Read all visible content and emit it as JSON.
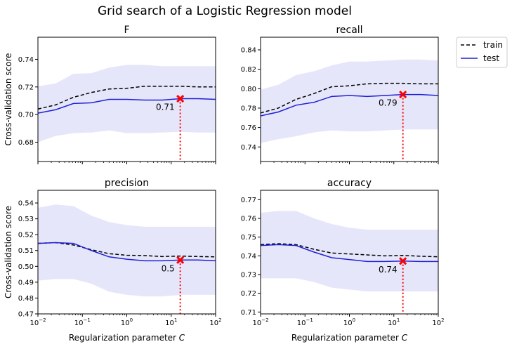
{
  "figure": {
    "title": "Grid search of a Logistic Regression model"
  },
  "legend": {
    "entries": [
      {
        "name": "train",
        "style": "dashed",
        "color": "#000000"
      },
      {
        "name": "test",
        "style": "solid",
        "color": "#0000ff"
      }
    ],
    "placement": "right-outside-top"
  },
  "colors": {
    "band": "#e6e6fb",
    "marker": "#ff0000",
    "test": "#1f1fd6",
    "train": "#000000"
  },
  "chart_data": [
    {
      "type": "line",
      "title": "F",
      "xlabel": "",
      "ylabel": "Cross-validation score",
      "xscale": "log",
      "xlim": [
        0.01,
        100
      ],
      "ylim": [
        0.666,
        0.756
      ],
      "yticks": [
        0.68,
        0.7,
        0.72,
        0.74
      ],
      "ytick_labels": [
        "0.68",
        "0.70",
        "0.72",
        "0.74"
      ],
      "show_xtick_labels": false,
      "x": [
        0.01,
        0.025,
        0.063,
        0.16,
        0.4,
        1,
        2.5,
        6.3,
        16,
        40,
        100
      ],
      "series": [
        {
          "name": "train",
          "values": [
            0.704,
            0.707,
            0.7125,
            0.716,
            0.7185,
            0.719,
            0.7205,
            0.7205,
            0.7205,
            0.72,
            0.72
          ]
        },
        {
          "name": "test",
          "values": [
            0.701,
            0.7035,
            0.708,
            0.7085,
            0.711,
            0.711,
            0.7105,
            0.7105,
            0.7115,
            0.7115,
            0.711
          ]
        }
      ],
      "band": {
        "lower": [
          0.68,
          0.6845,
          0.6865,
          0.687,
          0.6885,
          0.6865,
          0.6865,
          0.687,
          0.6875,
          0.687,
          0.687
        ],
        "upper": [
          0.7205,
          0.7225,
          0.7295,
          0.73,
          0.734,
          0.736,
          0.736,
          0.735,
          0.735,
          0.735,
          0.735
        ]
      },
      "best": {
        "x": 16,
        "y": 0.7115,
        "label": "0.71"
      }
    },
    {
      "type": "line",
      "title": "recall",
      "xlabel": "",
      "ylabel": "",
      "xscale": "log",
      "xlim": [
        0.01,
        100
      ],
      "ylim": [
        0.725,
        0.853
      ],
      "yticks": [
        0.74,
        0.76,
        0.78,
        0.8,
        0.82,
        0.84
      ],
      "ytick_labels": [
        "0.74",
        "0.76",
        "0.78",
        "0.80",
        "0.82",
        "0.84"
      ],
      "show_xtick_labels": false,
      "x": [
        0.01,
        0.025,
        0.063,
        0.16,
        0.4,
        1,
        2.5,
        6.3,
        16,
        40,
        100
      ],
      "series": [
        {
          "name": "train",
          "values": [
            0.775,
            0.78,
            0.789,
            0.795,
            0.802,
            0.803,
            0.805,
            0.8055,
            0.8055,
            0.805,
            0.805
          ]
        },
        {
          "name": "test",
          "values": [
            0.772,
            0.776,
            0.783,
            0.786,
            0.792,
            0.793,
            0.792,
            0.793,
            0.794,
            0.794,
            0.793
          ]
        }
      ],
      "band": {
        "lower": [
          0.744,
          0.748,
          0.751,
          0.755,
          0.757,
          0.756,
          0.756,
          0.757,
          0.758,
          0.758,
          0.758
        ],
        "upper": [
          0.799,
          0.804,
          0.814,
          0.818,
          0.824,
          0.828,
          0.828,
          0.829,
          0.83,
          0.83,
          0.829
        ]
      },
      "best": {
        "x": 16,
        "y": 0.794,
        "label": "0.79"
      }
    },
    {
      "type": "line",
      "title": "precision",
      "xlabel": "Regularization parameter C",
      "ylabel": "Cross-validation score",
      "xscale": "log",
      "xlim": [
        0.01,
        100
      ],
      "ylim": [
        0.47,
        0.548
      ],
      "yticks": [
        0.47,
        0.48,
        0.49,
        0.5,
        0.51,
        0.52,
        0.53,
        0.54
      ],
      "ytick_labels": [
        "0.47",
        "0.48",
        "0.49",
        "0.50",
        "0.51",
        "0.52",
        "0.53",
        "0.54"
      ],
      "show_xtick_labels": true,
      "xticks": [
        0.01,
        0.1,
        1,
        10,
        100
      ],
      "xtick_labels": [
        {
          "base": "10",
          "exp": "−2"
        },
        {
          "base": "10",
          "exp": "−1"
        },
        {
          "base": "10",
          "exp": "0"
        },
        {
          "base": "10",
          "exp": "1"
        },
        {
          "base": "10",
          "exp": "2"
        }
      ],
      "x": [
        0.01,
        0.025,
        0.063,
        0.16,
        0.4,
        1,
        2.5,
        6.3,
        16,
        40,
        100
      ],
      "series": [
        {
          "name": "train",
          "values": [
            0.5145,
            0.515,
            0.5135,
            0.5105,
            0.508,
            0.507,
            0.5068,
            0.5062,
            0.5065,
            0.5062,
            0.506
          ]
        },
        {
          "name": "test",
          "values": [
            0.5145,
            0.515,
            0.5145,
            0.51,
            0.506,
            0.5045,
            0.5035,
            0.5035,
            0.504,
            0.504,
            0.5035
          ]
        }
      ],
      "band": {
        "lower": [
          0.491,
          0.492,
          0.492,
          0.489,
          0.484,
          0.482,
          0.481,
          0.481,
          0.482,
          0.482,
          0.482
        ],
        "upper": [
          0.537,
          0.539,
          0.538,
          0.532,
          0.528,
          0.526,
          0.525,
          0.525,
          0.525,
          0.525,
          0.525
        ]
      },
      "best": {
        "x": 16,
        "y": 0.504,
        "label": "0.5"
      }
    },
    {
      "type": "line",
      "title": "accuracy",
      "xlabel": "Regularization parameter C",
      "ylabel": "",
      "xscale": "log",
      "xlim": [
        0.01,
        100
      ],
      "ylim": [
        0.709,
        0.775
      ],
      "yticks": [
        0.71,
        0.72,
        0.73,
        0.74,
        0.75,
        0.76,
        0.77
      ],
      "ytick_labels": [
        "0.71",
        "0.72",
        "0.73",
        "0.74",
        "0.75",
        "0.76",
        "0.77"
      ],
      "show_xtick_labels": true,
      "xticks": [
        0.01,
        0.1,
        1,
        10,
        100
      ],
      "xtick_labels": [
        {
          "base": "10",
          "exp": "−2"
        },
        {
          "base": "10",
          "exp": "−1"
        },
        {
          "base": "10",
          "exp": "0"
        },
        {
          "base": "10",
          "exp": "1"
        },
        {
          "base": "10",
          "exp": "2"
        }
      ],
      "x": [
        0.01,
        0.025,
        0.063,
        0.16,
        0.4,
        1,
        2.5,
        6.3,
        16,
        40,
        100
      ],
      "series": [
        {
          "name": "train",
          "values": [
            0.746,
            0.7465,
            0.746,
            0.7435,
            0.7415,
            0.741,
            0.7405,
            0.74,
            0.7402,
            0.7398,
            0.7395
          ]
        },
        {
          "name": "test",
          "values": [
            0.7455,
            0.746,
            0.7455,
            0.742,
            0.739,
            0.738,
            0.737,
            0.737,
            0.7372,
            0.737,
            0.737
          ]
        }
      ],
      "band": {
        "lower": [
          0.728,
          0.728,
          0.728,
          0.726,
          0.723,
          0.722,
          0.721,
          0.721,
          0.721,
          0.721,
          0.721
        ],
        "upper": [
          0.763,
          0.764,
          0.764,
          0.76,
          0.757,
          0.755,
          0.754,
          0.754,
          0.754,
          0.754,
          0.754
        ]
      },
      "best": {
        "x": 16,
        "y": 0.7372,
        "label": "0.74"
      }
    }
  ]
}
